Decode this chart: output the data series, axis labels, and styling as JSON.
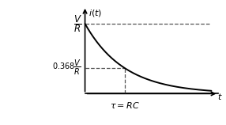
{
  "xlim": [
    0,
    3.2
  ],
  "ylim": [
    0,
    1.25
  ],
  "tau": 1.0,
  "V_over_R": 1.0,
  "decay_factor": 0.368,
  "curve_color": "#000000",
  "dashed_color": "#555555",
  "background_color": "#ffffff",
  "figsize": [
    2.86,
    1.58
  ],
  "dpi": 100
}
